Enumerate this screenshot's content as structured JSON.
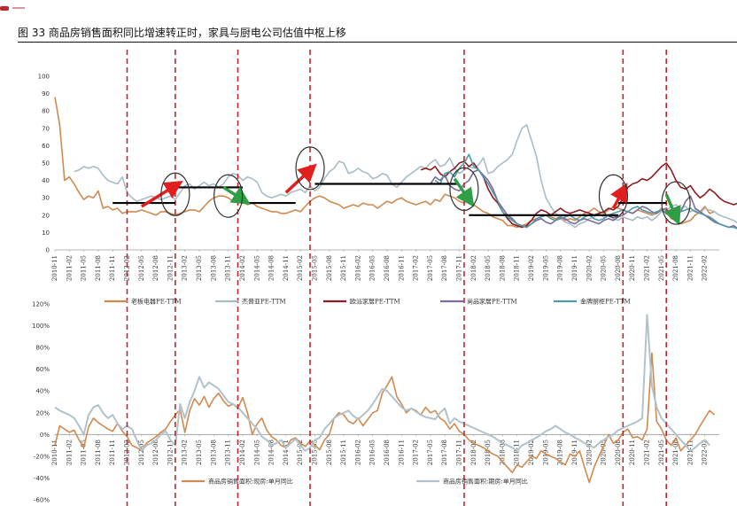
{
  "title": "图 33 商品房销售面积同比增速转正时，家具与厨电公司估值中枢上移",
  "colors": {
    "laoban": "#d08a4f",
    "jiefang": "#a9bcc6",
    "oupai": "#8b1d24",
    "shangpin": "#7e6a9c",
    "jinpai": "#4f9aa6",
    "sales_area": "#d08a4f",
    "sales_area_period": "#b1c2ca",
    "guide": "#c0272d",
    "up_arrow": "#e01f1f",
    "down_arrow": "#2f9e44",
    "hline": "#000000"
  },
  "chart_data": [
    {
      "type": "line",
      "title": "",
      "xlabel": "",
      "ylabel": "",
      "ylim": [
        0,
        100
      ],
      "yticks": [
        "0",
        "10",
        "20",
        "30",
        "40",
        "50",
        "60",
        "70",
        "80",
        "90",
        "100"
      ],
      "xticks": [
        "2010-11",
        "2011-02",
        "2011-05",
        "2011-08",
        "2011-11",
        "2012-02",
        "2012-05",
        "2012-08",
        "2012-11",
        "2013-02",
        "2013-05",
        "2013-08",
        "2013-11",
        "2014-02",
        "2014-05",
        "2014-08",
        "2014-11",
        "2015-02",
        "2015-05",
        "2015-08",
        "2015-11",
        "2016-02",
        "2016-05",
        "2016-08",
        "2016-11",
        "2017-02",
        "2017-05",
        "2017-08",
        "2017-11",
        "2018-02",
        "2018-05",
        "2018-08",
        "2018-11",
        "2019-02",
        "2019-05",
        "2019-08",
        "2019-11",
        "2020-02",
        "2020-05",
        "2020-08",
        "2020-11",
        "2021-02",
        "2021-05",
        "2021-08",
        "2021-11",
        "2022-02"
      ],
      "x_start": "2010-11",
      "legend": [
        "老板电器PE-TTM",
        "杰普亚PE-TTM",
        "欧派家居PE-TTM",
        "尚品家居PE-TTM",
        "金牌厨柜PE-TTM"
      ],
      "legend_position": "bottom",
      "guides": [
        "2012-02",
        "2012-12",
        "2014-01",
        "2015-04",
        "2017-12",
        "2020-09",
        "2021-06"
      ],
      "series": [
        {
          "name": "老板电器PE-TTM",
          "color_key": "laoban",
          "start": "2010-11",
          "values": [
            88,
            72,
            40,
            42,
            38,
            33,
            29,
            31,
            30,
            34,
            24,
            25,
            23,
            24,
            21,
            22,
            22,
            22,
            23,
            22,
            21,
            20,
            22,
            22,
            21,
            20,
            21,
            22,
            23,
            23,
            22,
            25,
            28,
            30,
            31,
            31,
            30,
            28,
            29,
            28,
            26,
            27,
            25,
            24,
            23,
            22,
            22,
            21,
            21,
            22,
            23,
            22,
            25,
            28,
            30,
            31,
            30,
            28,
            27,
            26,
            24,
            25,
            26,
            25,
            27,
            26,
            26,
            24,
            26,
            28,
            27,
            29,
            30,
            28,
            27,
            26,
            27,
            28,
            26,
            29,
            28,
            32,
            31,
            30,
            28,
            27,
            30,
            26,
            24,
            22,
            21,
            19,
            18,
            17,
            14,
            14,
            13,
            14,
            15,
            17,
            18,
            19,
            20,
            19,
            18,
            19,
            17,
            18,
            17,
            19,
            21,
            22,
            24,
            22,
            21,
            23,
            25,
            24,
            23,
            22,
            21,
            23,
            22,
            21,
            20,
            21,
            24,
            22,
            18,
            17,
            15,
            16,
            17,
            20,
            22,
            25,
            21,
            22
          ]
        },
        {
          "name": "杰普亚PE-TTM",
          "color_key": "jiefang",
          "start": "2011-03",
          "values": [
            45,
            46,
            48,
            47,
            48,
            47,
            43,
            40,
            39,
            38,
            42,
            33,
            30,
            28,
            29,
            30,
            31,
            30,
            29,
            30,
            31,
            29,
            33,
            37,
            38,
            35,
            37,
            39,
            37,
            38,
            36,
            38,
            42,
            44,
            43,
            40,
            42,
            41,
            39,
            33,
            31,
            30,
            31,
            32,
            31,
            33,
            34,
            35,
            33,
            37,
            34,
            36,
            41,
            45,
            47,
            51,
            50,
            44,
            45,
            47,
            45,
            44,
            41,
            42,
            44,
            43,
            38,
            36,
            39,
            42,
            44,
            46,
            48,
            47,
            50,
            52,
            48,
            49,
            53,
            47,
            44,
            46,
            48,
            47,
            49,
            53,
            44,
            45,
            48,
            50,
            52,
            55,
            63,
            70,
            72,
            63,
            54,
            40,
            30,
            25,
            21,
            18,
            16,
            15,
            13,
            15,
            16,
            18,
            19,
            21,
            19,
            20,
            18,
            17,
            19,
            18,
            17,
            19,
            18,
            19,
            17,
            19,
            22,
            23,
            25,
            26,
            24,
            25,
            22,
            23,
            21,
            24,
            23,
            22,
            20,
            19,
            18,
            17,
            15,
            13,
            14,
            15,
            14,
            16,
            17,
            15,
            14,
            13
          ]
        },
        {
          "name": "欧派家居PE-TTM",
          "color_key": "oupai",
          "start": "2017-03",
          "values": [
            46,
            47,
            46,
            48,
            44,
            42,
            45,
            47,
            50,
            51,
            48,
            50,
            46,
            42,
            35,
            30,
            27,
            22,
            18,
            15,
            14,
            13,
            14,
            17,
            21,
            23,
            22,
            20,
            22,
            24,
            22,
            21,
            22,
            23,
            22,
            21,
            20,
            21,
            22,
            24,
            23,
            25,
            30,
            36,
            38,
            39,
            41,
            40,
            42,
            45,
            48,
            50,
            46,
            40,
            36,
            35,
            37,
            33,
            30,
            32,
            35,
            33,
            30,
            28,
            27,
            26,
            27
          ]
        },
        {
          "name": "尚品家居PE-TTM",
          "color_key": "shangpin",
          "start": "2017-05",
          "values": [
            38,
            42,
            40,
            43,
            37,
            35,
            34,
            38,
            40,
            45,
            46,
            43,
            40,
            35,
            28,
            24,
            20,
            18,
            15,
            14,
            13,
            15,
            17,
            18,
            16,
            15,
            17,
            19,
            18,
            16,
            15,
            17,
            18,
            17,
            16,
            15,
            17,
            18,
            17,
            19,
            20,
            22,
            21,
            23,
            25,
            24,
            22,
            21,
            23,
            24,
            20,
            21,
            22,
            28,
            31,
            24,
            22,
            20,
            18,
            16,
            15,
            14,
            13,
            14,
            12,
            11,
            12
          ]
        },
        {
          "name": "金牌厨柜PE-TTM",
          "color_key": "jinpai",
          "start": "2017-06",
          "values": [
            40,
            38,
            44,
            45,
            42,
            47,
            50,
            55,
            48,
            46,
            42,
            38,
            33,
            28,
            22,
            19,
            17,
            15,
            14,
            13,
            15,
            18,
            19,
            20,
            18,
            17,
            18,
            19,
            20,
            18,
            17,
            19,
            20,
            18,
            17,
            18,
            20,
            21,
            22,
            23,
            22,
            24,
            25,
            23,
            22,
            21,
            22,
            23,
            21,
            20,
            21,
            22,
            23,
            24,
            22,
            21,
            20,
            19,
            17,
            15,
            14,
            13,
            13,
            12,
            13,
            12
          ]
        }
      ],
      "hlines": [
        {
          "from": "2011-11",
          "to": "2012-12",
          "y": 27
        },
        {
          "from": "2012-12",
          "to": "2014-02",
          "y": 36
        },
        {
          "from": "2014-02",
          "to": "2015-01",
          "y": 27
        },
        {
          "from": "2015-05",
          "to": "2017-11",
          "y": 38
        },
        {
          "from": "2018-01",
          "to": "2020-08",
          "y": 20
        },
        {
          "from": "2020-08",
          "to": "2021-06",
          "y": 27
        }
      ],
      "arrows": [
        {
          "kind": "up",
          "x1": "2012-05",
          "y1": 25,
          "x2": "2012-12",
          "y2": 37
        },
        {
          "kind": "down",
          "x1": "2013-10",
          "y1": 36,
          "x2": "2014-02",
          "y2": 29
        },
        {
          "kind": "up",
          "x1": "2014-11",
          "y1": 33,
          "x2": "2015-04",
          "y2": 46
        },
        {
          "kind": "down",
          "x1": "2017-10",
          "y1": 41,
          "x2": "2018-01",
          "y2": 29
        },
        {
          "kind": "up",
          "x1": "2020-07",
          "y1": 24,
          "x2": "2020-09",
          "y2": 34
        },
        {
          "kind": "down",
          "x1": "2021-06",
          "y1": 32,
          "x2": "2021-08",
          "y2": 19
        }
      ],
      "ellipses": [
        {
          "x": "2012-12",
          "y": 32
        },
        {
          "x": "2013-11",
          "y": 31
        },
        {
          "x": "2015-04",
          "y": 47
        },
        {
          "x": "2017-12",
          "y": 35
        },
        {
          "x": "2020-07",
          "y": 31
        },
        {
          "x": "2021-08",
          "y": 27
        }
      ]
    },
    {
      "type": "line",
      "title": "",
      "xlabel": "",
      "ylabel": "",
      "ylim": [
        -60,
        120
      ],
      "yticks": [
        "120%",
        "100%",
        "80%",
        "60%",
        "40%",
        "20%",
        "0%",
        "-20%",
        "-40%",
        "-60%"
      ],
      "xticks": [
        "2010-11",
        "2011-02",
        "2011-05",
        "2011-08",
        "2011-11",
        "2012-02",
        "2012-05",
        "2012-08",
        "2012-11",
        "2013-02",
        "2013-05",
        "2013-08",
        "2013-11",
        "2014-02",
        "2014-05",
        "2014-08",
        "2014-11",
        "2015-02",
        "2015-05",
        "2015-08",
        "2015-11",
        "2016-02",
        "2016-05",
        "2016-08",
        "2016-11",
        "2017-02",
        "2017-05",
        "2017-08",
        "2017-11",
        "2018-02",
        "2018-05",
        "2018-08",
        "2018-11",
        "2019-02",
        "2019-05",
        "2019-08",
        "2019-11",
        "2020-02",
        "2020-05",
        "2020-08",
        "2020-11",
        "2021-02",
        "2021-05",
        "2021-08",
        "2021-11",
        "2022-02"
      ],
      "legend": [
        "商品房销售面积:现房:单月同比",
        "商品房销售面积:期房:单月同比"
      ],
      "legend_position": "bottom",
      "series": [
        {
          "name": "商品房销售面积:现房:单月同比",
          "color_key": "sales_area",
          "start": "2010-11",
          "values": [
            -10,
            8,
            5,
            2,
            4,
            -5,
            -12,
            7,
            15,
            11,
            8,
            5,
            3,
            10,
            3,
            -2,
            -10,
            -12,
            -15,
            -8,
            -5,
            -2,
            2,
            5,
            12,
            18,
            23,
            2,
            22,
            33,
            27,
            35,
            25,
            33,
            38,
            31,
            26,
            28,
            24,
            34,
            20,
            0,
            10,
            15,
            4,
            -2,
            -5,
            -10,
            -12,
            -5,
            -3,
            -8,
            -11,
            -6,
            -10,
            -14,
            -5,
            0,
            15,
            20,
            18,
            12,
            10,
            15,
            8,
            14,
            20,
            22,
            38,
            45,
            53,
            35,
            28,
            20,
            24,
            22,
            18,
            25,
            20,
            22,
            15,
            12,
            5,
            10,
            3,
            0,
            -5,
            -8,
            -10,
            -12,
            -15,
            -18,
            -20,
            -25,
            -30,
            -35,
            -28,
            -30,
            -25,
            -20,
            -22,
            -15,
            -18,
            -20,
            -22,
            -25,
            -28,
            -18,
            -20,
            -15,
            -30,
            -44,
            -30,
            -20,
            -10,
            0,
            -8,
            -5,
            2,
            5,
            -3,
            -2,
            -5,
            5,
            75,
            12,
            5,
            -5,
            -10,
            -3,
            -15,
            -10,
            -5,
            0,
            8,
            15,
            22,
            18
          ]
        },
        {
          "name": "商品房销售面积:期房:单月同比",
          "color_key": "sales_area_period",
          "start": "2010-11",
          "values": [
            25,
            22,
            20,
            18,
            15,
            8,
            0,
            18,
            25,
            27,
            20,
            15,
            18,
            10,
            5,
            8,
            5,
            -5,
            -15,
            -10,
            -8,
            -5,
            0,
            3,
            -5,
            -10,
            28,
            15,
            30,
            40,
            53,
            43,
            48,
            45,
            42,
            36,
            30,
            28,
            25,
            20,
            15,
            10,
            5,
            -2,
            -5,
            -10,
            -8,
            -5,
            -12,
            -8,
            -4,
            -10,
            -15,
            -12,
            -5,
            -3,
            5,
            10,
            15,
            18,
            20,
            22,
            17,
            14,
            18,
            22,
            28,
            35,
            42,
            40,
            35,
            30,
            25,
            22,
            24,
            21,
            18,
            16,
            15,
            14,
            20,
            24,
            10,
            15,
            12,
            10,
            8,
            6,
            4,
            2,
            0,
            -2,
            -5,
            -8,
            -10,
            -12,
            -15,
            -10,
            -8,
            -5,
            -3,
            0,
            3,
            5,
            8,
            5,
            2,
            0,
            -3,
            -5,
            -8,
            -10,
            -12,
            -8,
            -5,
            -2,
            0,
            4,
            6,
            8,
            10,
            12,
            15,
            110,
            45,
            25,
            15,
            10,
            5,
            0,
            -5,
            -10,
            -15,
            -12,
            -8,
            -5,
            -10
          ]
        }
      ]
    }
  ]
}
